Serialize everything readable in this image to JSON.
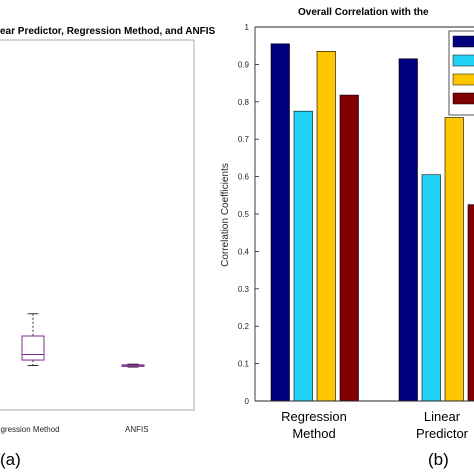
{
  "panel_labels": {
    "a": "(a)",
    "b": "(b)"
  },
  "chart_data": [
    {
      "type": "box",
      "title": "ear Predictor, Regression Method, and ANFIS",
      "categories": [
        "egression Method",
        "ANFIS"
      ],
      "boxes": [
        {
          "category": "egression Method",
          "whisker_low": 0.12,
          "q1": 0.135,
          "median": 0.15,
          "q3": 0.2,
          "whisker_high": 0.26
        },
        {
          "category": "ANFIS",
          "whisker_low": 0.116,
          "q1": 0.118,
          "median": 0.12,
          "q3": 0.122,
          "whisker_high": 0.124
        }
      ],
      "ylim": [
        0,
        1
      ],
      "box_color": "#7e2f8e",
      "median_color": "#7e2f8e"
    },
    {
      "type": "bar",
      "title": "Overall Correlation with the",
      "ylabel": "Correlation Coefficients",
      "categories": [
        "Regression\nMethod",
        "Linear\nPredictor"
      ],
      "yticks": [
        "0",
        "0.1",
        "0.2",
        "0.3",
        "0.4",
        "0.5",
        "0.6",
        "0.7",
        "0.8",
        "0.9",
        "1"
      ],
      "ylim": [
        0,
        1
      ],
      "series": [
        {
          "color": "#00007f",
          "values": [
            0.955,
            0.915
          ]
        },
        {
          "color": "#22d3f5",
          "values": [
            0.775,
            0.605
          ]
        },
        {
          "color": "#ffc600",
          "values": [
            0.935,
            0.758
          ]
        },
        {
          "color": "#7f0000",
          "values": [
            0.818,
            0.525
          ]
        }
      ],
      "legend_colors": [
        "#00007f",
        "#22d3f5",
        "#ffc600",
        "#7f0000"
      ],
      "legend": "top-right"
    }
  ]
}
